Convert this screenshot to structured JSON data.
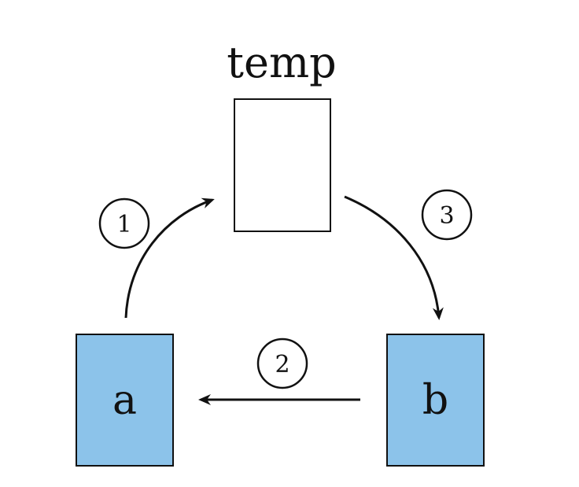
{
  "title": "temp",
  "colors": {
    "box_fill": "#8cc3ea",
    "temp_fill": "#ffffff",
    "stroke": "#111111"
  },
  "boxes": {
    "a": {
      "label": "a"
    },
    "b": {
      "label": "b"
    },
    "temp": {
      "label": ""
    }
  },
  "steps": [
    {
      "number": "1",
      "description": ""
    },
    {
      "number": "2",
      "description": ""
    },
    {
      "number": "3",
      "description": ""
    }
  ]
}
